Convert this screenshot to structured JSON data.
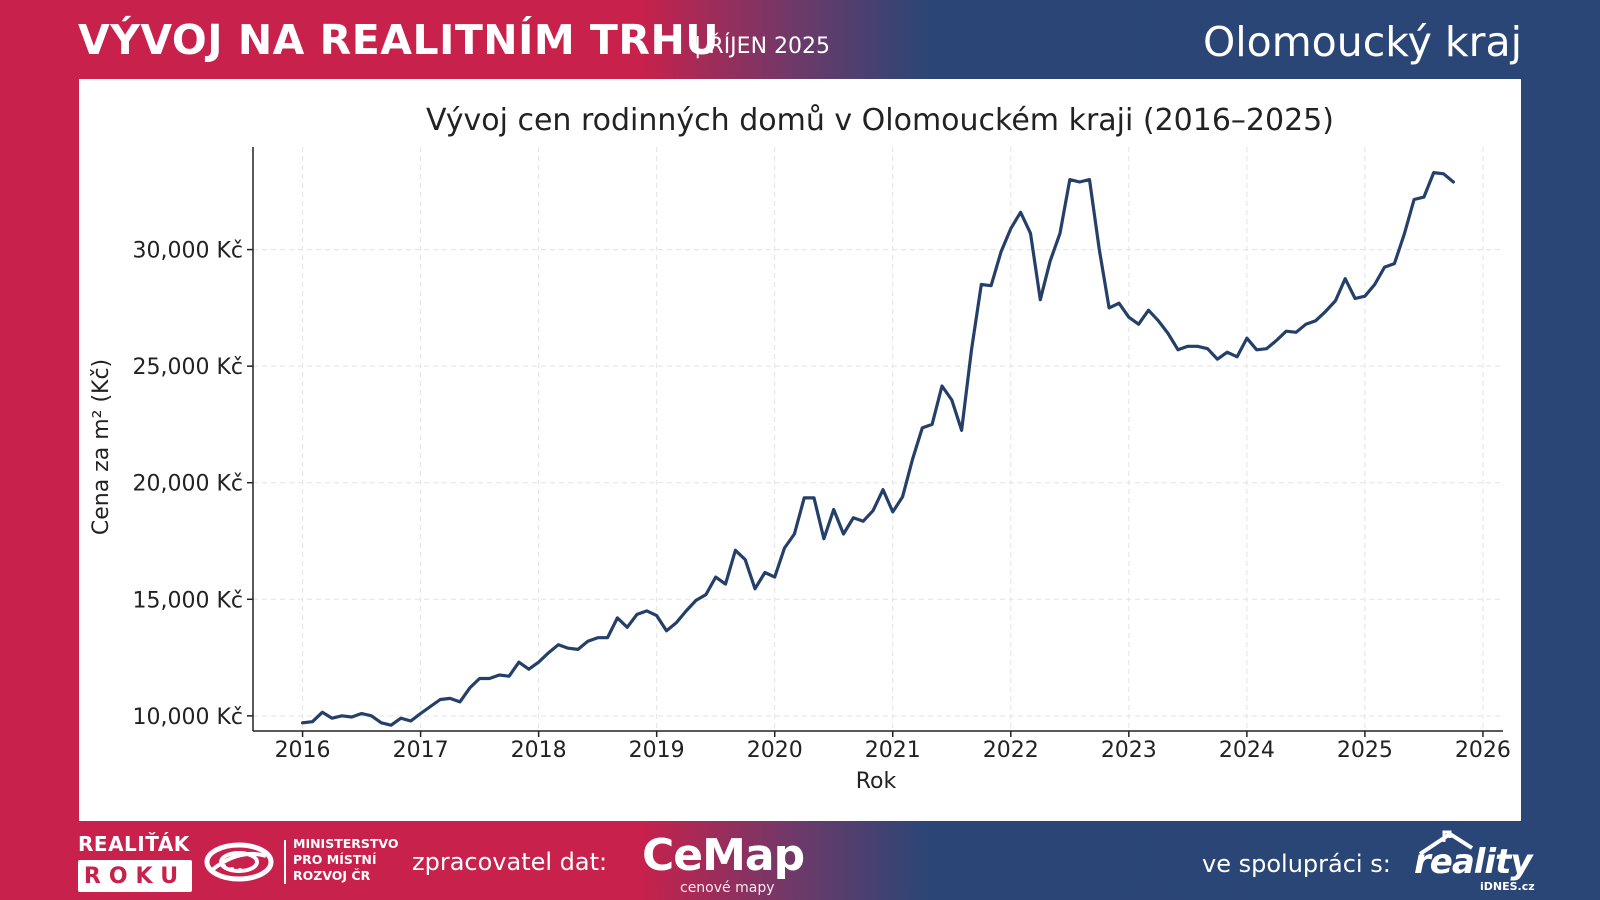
{
  "header": {
    "title": "VÝVOJ NA REALITNÍM TRHU",
    "subtitle": "| ŘÍJEN 2025",
    "region": "Olomoucký kraj"
  },
  "footer": {
    "realitak_top": "REALIŤÁK",
    "realitak_box": "ROKU",
    "mmr_line1": "MINISTERSTVO",
    "mmr_line2": "PRO MÍSTNÍ",
    "mmr_line3": "ROZVOJ ČR",
    "zpracovatel_label": "zpracovatel dat:",
    "cemap_word": "CeMap",
    "cemap_sub": "cenové mapy",
    "spoluprace_label": "ve spolupráci s:",
    "reality_word": "reality",
    "reality_sub": "iDNES.cz"
  },
  "colors": {
    "crimson": "#c8214c",
    "navy": "#2a4677",
    "line": "#243f68"
  },
  "chart_data": {
    "type": "line",
    "title": "Vývoj cen rodinných domů v Olomouckém kraji (2016–2025)",
    "xlabel": "Rok",
    "ylabel": "Cena za m² (Kč)",
    "xlim": [
      2015.58,
      2026.17
    ],
    "ylim": [
      9350,
      34400
    ],
    "x_ticks": [
      2016,
      2017,
      2018,
      2019,
      2020,
      2021,
      2022,
      2023,
      2024,
      2025,
      2026
    ],
    "x_tick_labels": [
      "2016",
      "2017",
      "2018",
      "2019",
      "2020",
      "2021",
      "2022",
      "2023",
      "2024",
      "2025",
      "2026"
    ],
    "y_ticks": [
      10000,
      15000,
      20000,
      25000,
      30000
    ],
    "y_tick_labels": [
      "10,000 Kč",
      "15,000 Kč",
      "20,000 Kč",
      "25,000 Kč",
      "30,000 Kč"
    ],
    "grid": true,
    "series": [
      {
        "x": [
          2016.0,
          2016.083,
          2016.167,
          2016.25,
          2016.333,
          2016.417,
          2016.5,
          2016.583,
          2016.667,
          2016.75,
          2016.833,
          2016.917,
          2017.0,
          2017.083,
          2017.167,
          2017.25,
          2017.333,
          2017.417,
          2017.5,
          2017.583,
          2017.667,
          2017.75,
          2017.833,
          2017.917,
          2018.0,
          2018.083,
          2018.167,
          2018.25,
          2018.333,
          2018.417,
          2018.5,
          2018.583,
          2018.667,
          2018.75,
          2018.833,
          2018.917,
          2019.0,
          2019.083,
          2019.167,
          2019.25,
          2019.333,
          2019.417,
          2019.5,
          2019.583,
          2019.667,
          2019.75,
          2019.833,
          2019.917,
          2020.0,
          2020.083,
          2020.167,
          2020.25,
          2020.333,
          2020.417,
          2020.5,
          2020.583,
          2020.667,
          2020.75,
          2020.833,
          2020.917,
          2021.0,
          2021.083,
          2021.167,
          2021.25,
          2021.333,
          2021.417,
          2021.5,
          2021.583,
          2021.667,
          2021.75,
          2021.833,
          2021.917,
          2022.0,
          2022.083,
          2022.167,
          2022.25,
          2022.333,
          2022.417,
          2022.5,
          2022.583,
          2022.667,
          2022.75,
          2022.833,
          2022.917,
          2023.0,
          2023.083,
          2023.167,
          2023.25,
          2023.333,
          2023.417,
          2023.5,
          2023.583,
          2023.667,
          2023.75,
          2023.833,
          2023.917,
          2024.0,
          2024.083,
          2024.167,
          2024.25,
          2024.333,
          2024.417,
          2024.5,
          2024.583,
          2024.667,
          2024.75,
          2024.833,
          2024.917,
          2025.0,
          2025.083,
          2025.167,
          2025.25,
          2025.333,
          2025.417,
          2025.5,
          2025.583,
          2025.667,
          2025.75
        ],
        "values": [
          9700,
          9750,
          10150,
          9900,
          10000,
          9950,
          10100,
          10000,
          9700,
          9600,
          9900,
          9780,
          10100,
          10400,
          10700,
          10750,
          10600,
          11200,
          11600,
          11600,
          11750,
          11700,
          12300,
          12000,
          12300,
          12700,
          13050,
          12900,
          12850,
          13200,
          13350,
          13350,
          14200,
          13800,
          14350,
          14500,
          14300,
          13650,
          14000,
          14500,
          14950,
          15200,
          15950,
          15650,
          17100,
          16700,
          15450,
          16150,
          15950,
          17200,
          17800,
          19350,
          19350,
          17600,
          18850,
          17800,
          18500,
          18350,
          18800,
          19700,
          18750,
          19400,
          21000,
          22350,
          22500,
          24150,
          23550,
          22250,
          25700,
          28500,
          28450,
          29900,
          30900,
          31600,
          30700,
          27850,
          29500,
          30700,
          33000,
          32900,
          33000,
          30000,
          27500,
          27700,
          27100,
          26800,
          27400,
          26950,
          26400,
          25700,
          25850,
          25850,
          25750,
          25300,
          25600,
          25400,
          26200,
          25700,
          25750,
          26100,
          26500,
          26450,
          26800,
          26950,
          27350,
          27800,
          28750,
          27900,
          28000,
          28500,
          29250,
          29400,
          30650,
          32150,
          32250,
          33300,
          33250,
          32900
        ]
      }
    ]
  }
}
